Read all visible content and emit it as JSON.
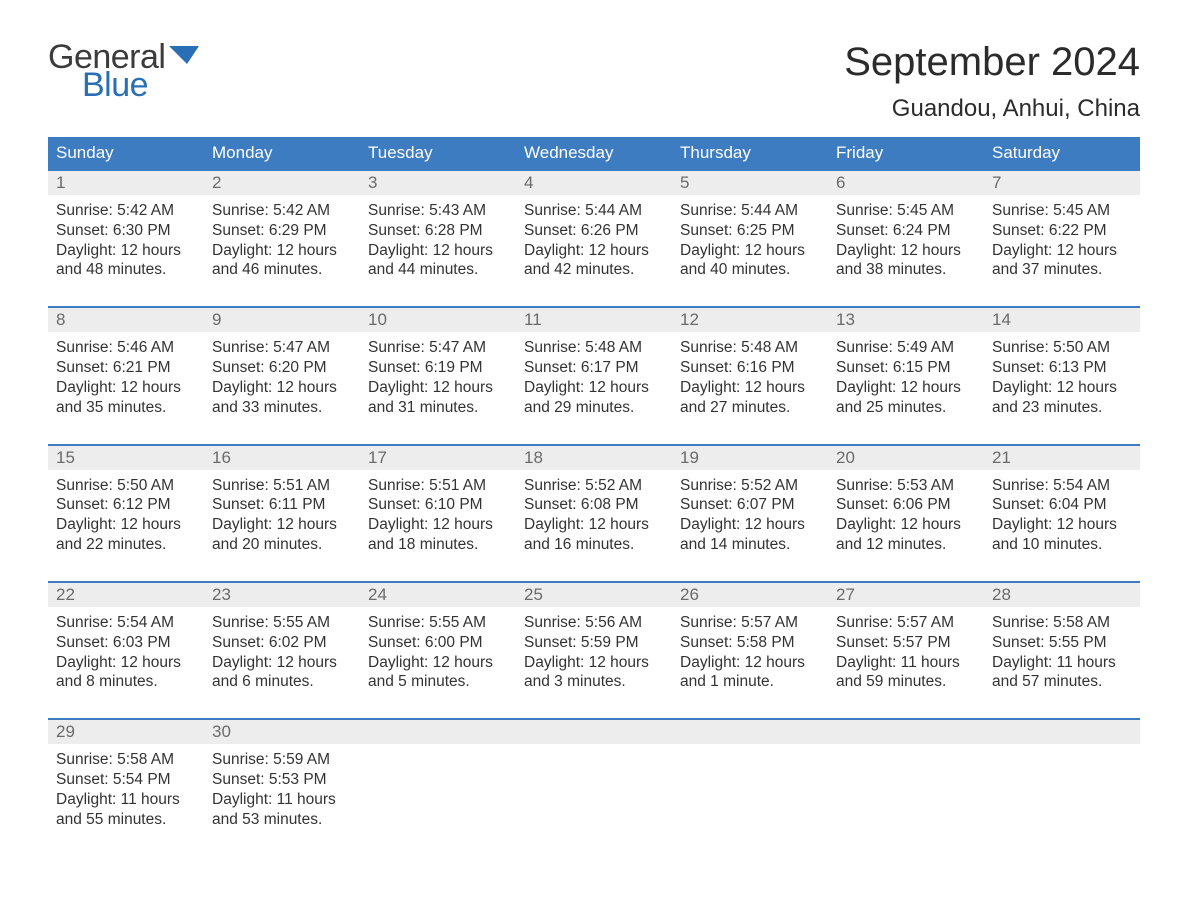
{
  "brand": {
    "word1": "General",
    "word2": "Blue",
    "flag_color": "#2a6fb5"
  },
  "title": "September 2024",
  "location": "Guandou, Anhui, China",
  "colors": {
    "header_bg": "#3d7cc0",
    "header_text": "#ffffff",
    "daynum_bg": "#ededed",
    "daynum_text": "#6b6b6b",
    "body_text": "#333333",
    "rule": "#3d7cc0",
    "page_bg": "#ffffff"
  },
  "day_names": [
    "Sunday",
    "Monday",
    "Tuesday",
    "Wednesday",
    "Thursday",
    "Friday",
    "Saturday"
  ],
  "weeks": [
    [
      {
        "n": "1",
        "sunrise": "Sunrise: 5:42 AM",
        "sunset": "Sunset: 6:30 PM",
        "d1": "Daylight: 12 hours",
        "d2": "and 48 minutes."
      },
      {
        "n": "2",
        "sunrise": "Sunrise: 5:42 AM",
        "sunset": "Sunset: 6:29 PM",
        "d1": "Daylight: 12 hours",
        "d2": "and 46 minutes."
      },
      {
        "n": "3",
        "sunrise": "Sunrise: 5:43 AM",
        "sunset": "Sunset: 6:28 PM",
        "d1": "Daylight: 12 hours",
        "d2": "and 44 minutes."
      },
      {
        "n": "4",
        "sunrise": "Sunrise: 5:44 AM",
        "sunset": "Sunset: 6:26 PM",
        "d1": "Daylight: 12 hours",
        "d2": "and 42 minutes."
      },
      {
        "n": "5",
        "sunrise": "Sunrise: 5:44 AM",
        "sunset": "Sunset: 6:25 PM",
        "d1": "Daylight: 12 hours",
        "d2": "and 40 minutes."
      },
      {
        "n": "6",
        "sunrise": "Sunrise: 5:45 AM",
        "sunset": "Sunset: 6:24 PM",
        "d1": "Daylight: 12 hours",
        "d2": "and 38 minutes."
      },
      {
        "n": "7",
        "sunrise": "Sunrise: 5:45 AM",
        "sunset": "Sunset: 6:22 PM",
        "d1": "Daylight: 12 hours",
        "d2": "and 37 minutes."
      }
    ],
    [
      {
        "n": "8",
        "sunrise": "Sunrise: 5:46 AM",
        "sunset": "Sunset: 6:21 PM",
        "d1": "Daylight: 12 hours",
        "d2": "and 35 minutes."
      },
      {
        "n": "9",
        "sunrise": "Sunrise: 5:47 AM",
        "sunset": "Sunset: 6:20 PM",
        "d1": "Daylight: 12 hours",
        "d2": "and 33 minutes."
      },
      {
        "n": "10",
        "sunrise": "Sunrise: 5:47 AM",
        "sunset": "Sunset: 6:19 PM",
        "d1": "Daylight: 12 hours",
        "d2": "and 31 minutes."
      },
      {
        "n": "11",
        "sunrise": "Sunrise: 5:48 AM",
        "sunset": "Sunset: 6:17 PM",
        "d1": "Daylight: 12 hours",
        "d2": "and 29 minutes."
      },
      {
        "n": "12",
        "sunrise": "Sunrise: 5:48 AM",
        "sunset": "Sunset: 6:16 PM",
        "d1": "Daylight: 12 hours",
        "d2": "and 27 minutes."
      },
      {
        "n": "13",
        "sunrise": "Sunrise: 5:49 AM",
        "sunset": "Sunset: 6:15 PM",
        "d1": "Daylight: 12 hours",
        "d2": "and 25 minutes."
      },
      {
        "n": "14",
        "sunrise": "Sunrise: 5:50 AM",
        "sunset": "Sunset: 6:13 PM",
        "d1": "Daylight: 12 hours",
        "d2": "and 23 minutes."
      }
    ],
    [
      {
        "n": "15",
        "sunrise": "Sunrise: 5:50 AM",
        "sunset": "Sunset: 6:12 PM",
        "d1": "Daylight: 12 hours",
        "d2": "and 22 minutes."
      },
      {
        "n": "16",
        "sunrise": "Sunrise: 5:51 AM",
        "sunset": "Sunset: 6:11 PM",
        "d1": "Daylight: 12 hours",
        "d2": "and 20 minutes."
      },
      {
        "n": "17",
        "sunrise": "Sunrise: 5:51 AM",
        "sunset": "Sunset: 6:10 PM",
        "d1": "Daylight: 12 hours",
        "d2": "and 18 minutes."
      },
      {
        "n": "18",
        "sunrise": "Sunrise: 5:52 AM",
        "sunset": "Sunset: 6:08 PM",
        "d1": "Daylight: 12 hours",
        "d2": "and 16 minutes."
      },
      {
        "n": "19",
        "sunrise": "Sunrise: 5:52 AM",
        "sunset": "Sunset: 6:07 PM",
        "d1": "Daylight: 12 hours",
        "d2": "and 14 minutes."
      },
      {
        "n": "20",
        "sunrise": "Sunrise: 5:53 AM",
        "sunset": "Sunset: 6:06 PM",
        "d1": "Daylight: 12 hours",
        "d2": "and 12 minutes."
      },
      {
        "n": "21",
        "sunrise": "Sunrise: 5:54 AM",
        "sunset": "Sunset: 6:04 PM",
        "d1": "Daylight: 12 hours",
        "d2": "and 10 minutes."
      }
    ],
    [
      {
        "n": "22",
        "sunrise": "Sunrise: 5:54 AM",
        "sunset": "Sunset: 6:03 PM",
        "d1": "Daylight: 12 hours",
        "d2": "and 8 minutes."
      },
      {
        "n": "23",
        "sunrise": "Sunrise: 5:55 AM",
        "sunset": "Sunset: 6:02 PM",
        "d1": "Daylight: 12 hours",
        "d2": "and 6 minutes."
      },
      {
        "n": "24",
        "sunrise": "Sunrise: 5:55 AM",
        "sunset": "Sunset: 6:00 PM",
        "d1": "Daylight: 12 hours",
        "d2": "and 5 minutes."
      },
      {
        "n": "25",
        "sunrise": "Sunrise: 5:56 AM",
        "sunset": "Sunset: 5:59 PM",
        "d1": "Daylight: 12 hours",
        "d2": "and 3 minutes."
      },
      {
        "n": "26",
        "sunrise": "Sunrise: 5:57 AM",
        "sunset": "Sunset: 5:58 PM",
        "d1": "Daylight: 12 hours",
        "d2": "and 1 minute."
      },
      {
        "n": "27",
        "sunrise": "Sunrise: 5:57 AM",
        "sunset": "Sunset: 5:57 PM",
        "d1": "Daylight: 11 hours",
        "d2": "and 59 minutes."
      },
      {
        "n": "28",
        "sunrise": "Sunrise: 5:58 AM",
        "sunset": "Sunset: 5:55 PM",
        "d1": "Daylight: 11 hours",
        "d2": "and 57 minutes."
      }
    ],
    [
      {
        "n": "29",
        "sunrise": "Sunrise: 5:58 AM",
        "sunset": "Sunset: 5:54 PM",
        "d1": "Daylight: 11 hours",
        "d2": "and 55 minutes."
      },
      {
        "n": "30",
        "sunrise": "Sunrise: 5:59 AM",
        "sunset": "Sunset: 5:53 PM",
        "d1": "Daylight: 11 hours",
        "d2": "and 53 minutes."
      },
      null,
      null,
      null,
      null,
      null
    ]
  ]
}
